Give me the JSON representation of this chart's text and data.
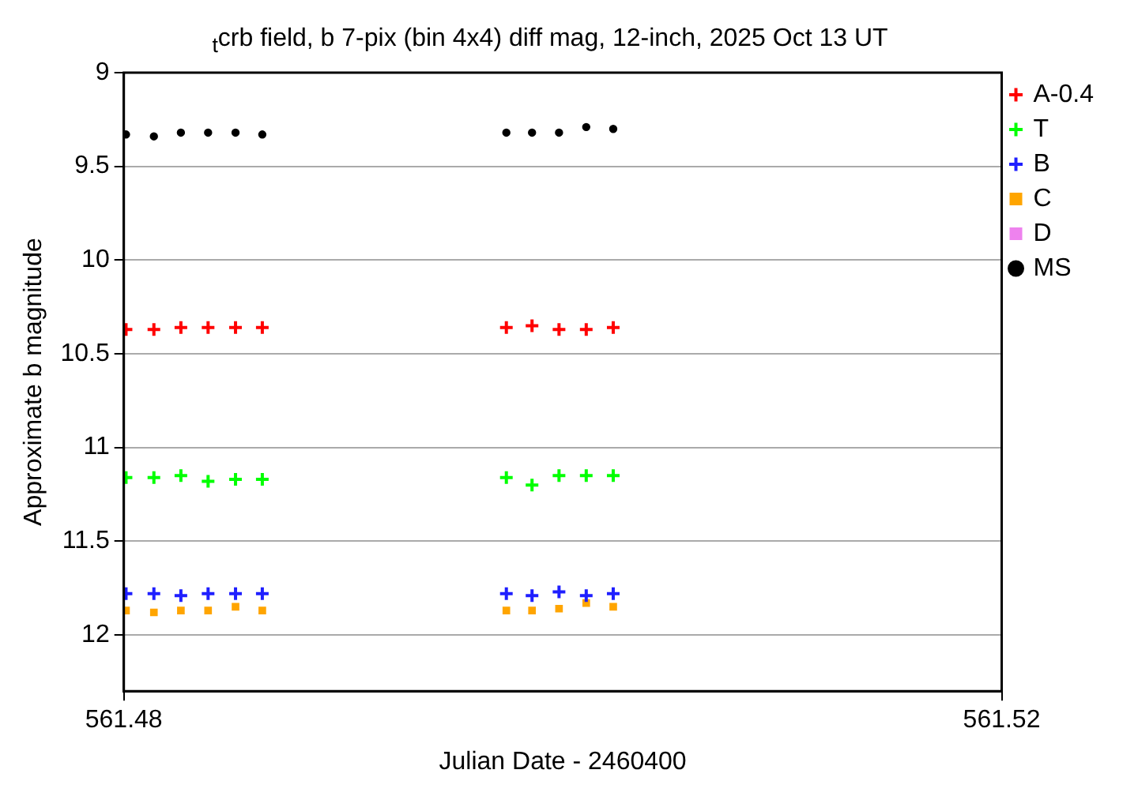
{
  "chart_data": {
    "type": "scatter",
    "title": "$_{t}$crb field, b 7-pix (bin 4x4) diff mag, 12-inch, 2025 Oct 13 UT",
    "xlabel": "Julian Date - 2460400",
    "ylabel": "Approximate b magnitude",
    "x": [
      561.4801,
      561.48137,
      561.4826,
      561.48384,
      561.48509,
      561.48631,
      561.49743,
      561.4986,
      561.49983,
      561.50107,
      561.5023
    ],
    "series": [
      {
        "name": "A-0.4",
        "color": "#ff0000",
        "marker": "cross",
        "values": [
          10.37,
          10.37,
          10.36,
          10.36,
          10.36,
          10.36,
          10.36,
          10.35,
          10.37,
          10.37,
          10.36
        ]
      },
      {
        "name": "T",
        "color": "#00ff00",
        "marker": "cross",
        "values": [
          11.16,
          11.16,
          11.15,
          11.18,
          11.17,
          11.17,
          11.16,
          11.2,
          11.15,
          11.15,
          11.15
        ]
      },
      {
        "name": "B",
        "color": "#1f1fff",
        "marker": "cross",
        "values": [
          11.78,
          11.78,
          11.79,
          11.78,
          11.78,
          11.78,
          11.78,
          11.79,
          11.77,
          11.79,
          11.78
        ]
      },
      {
        "name": "C",
        "color": "#ffa500",
        "marker": "square",
        "values": [
          11.87,
          11.88,
          11.87,
          11.87,
          11.85,
          11.87,
          11.87,
          11.87,
          11.86,
          11.83,
          11.85
        ]
      },
      {
        "name": "D",
        "color": "#ee82ee",
        "marker": "square",
        "values": [
          null,
          null,
          null,
          null,
          null,
          null,
          null,
          null,
          null,
          null,
          null
        ]
      },
      {
        "name": "MS",
        "color": "#000000",
        "marker": "circle",
        "values": [
          9.33,
          9.34,
          9.32,
          9.32,
          9.32,
          9.33,
          9.32,
          9.32,
          9.32,
          9.29,
          9.3
        ]
      }
    ],
    "xlim": [
      561.48,
      561.52
    ],
    "xticks": [
      561.48,
      561.52
    ],
    "ylim": [
      12.3,
      9
    ],
    "yticks": [
      9,
      9.5,
      10,
      10.5,
      11,
      11.5,
      12
    ],
    "grid": "y",
    "legend": "right"
  }
}
